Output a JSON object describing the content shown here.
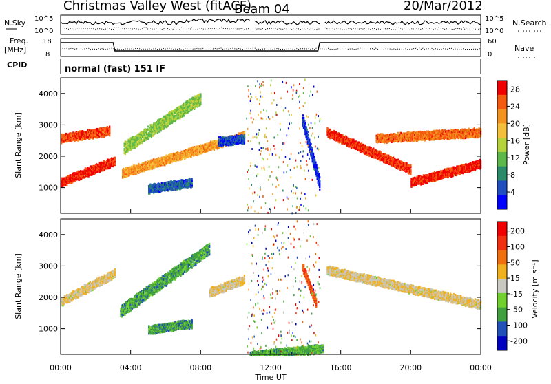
{
  "header": {
    "station": "Christmas Valley West (fitACF)",
    "beam": "Beam 04",
    "date": "20/Mar/2012"
  },
  "top_panels": {
    "nsky_label": "N.Sky",
    "nsky_top": "10^5",
    "nsky_bottom": "10^0",
    "nsky_right_top": "10^5",
    "nsky_right_bottom": "10^0",
    "nsearch_label": "N.Search",
    "freq_label": "Freq.",
    "freq_unit": "[MHz]",
    "freq_top": "18",
    "freq_bottom": "8",
    "nave_top": "60",
    "nave_bottom": "0",
    "nave_label": "Nave",
    "cpid_label": "CPID",
    "cpid_text": "normal (fast) 151 IF"
  },
  "x_axis": {
    "label": "Time UT",
    "ticks": [
      "00:00",
      "04:00",
      "08:00",
      "12:00",
      "16:00",
      "20:00",
      "00:00"
    ]
  },
  "chart_data": [
    {
      "type": "heatmap",
      "title": "",
      "xlabel": "Time UT",
      "ylabel": "Slant Range [km]",
      "xlim": [
        0,
        24
      ],
      "ylim": [
        180,
        4500
      ],
      "yticks": [
        "1000",
        "2000",
        "3000",
        "4000"
      ],
      "colorbar": {
        "label": "Power [dB]",
        "ticks": [
          "4",
          "8",
          "12",
          "16",
          "20",
          "24",
          "28"
        ],
        "range": [
          0,
          30
        ],
        "colors": [
          "#0000ff",
          "#1f4fbf",
          "#2a8a6a",
          "#5cb84a",
          "#b6d23a",
          "#f4c03c",
          "#f49420",
          "#f45a10",
          "#f00000"
        ]
      },
      "bands": [
        {
          "t0": 0.0,
          "t1": 3.1,
          "r_start": 1200,
          "r_end": 1900,
          "level": 0.92
        },
        {
          "t0": 0.0,
          "t1": 2.8,
          "r_start": 2600,
          "r_end": 2850,
          "level": 0.85
        },
        {
          "t0": 3.5,
          "t1": 10.5,
          "r_start": 1500,
          "r_end": 2700,
          "level": 0.7
        },
        {
          "t0": 3.6,
          "t1": 8.0,
          "r_start": 2300,
          "r_end": 3900,
          "level": 0.45
        },
        {
          "t0": 9.0,
          "t1": 10.5,
          "r_start": 2500,
          "r_end": 2600,
          "level": 0.15
        },
        {
          "t0": 5.0,
          "t1": 7.5,
          "r_start": 1000,
          "r_end": 1200,
          "level": 0.2
        },
        {
          "t0": 13.8,
          "t1": 14.8,
          "r_start": 3200,
          "r_end": 1100,
          "level": 0.12
        },
        {
          "t0": 15.2,
          "t1": 20.0,
          "r_start": 2800,
          "r_end": 1600,
          "level": 0.9
        },
        {
          "t0": 20.0,
          "t1": 24.0,
          "r_start": 1200,
          "r_end": 1800,
          "level": 0.92
        },
        {
          "t0": 18.0,
          "t1": 24.0,
          "r_start": 2600,
          "r_end": 2800,
          "level": 0.8
        }
      ]
    },
    {
      "type": "heatmap",
      "title": "",
      "xlabel": "Time UT",
      "ylabel": "Slant Range [km]",
      "xlim": [
        0,
        24
      ],
      "ylim": [
        180,
        4500
      ],
      "yticks": [
        "1000",
        "2000",
        "3000",
        "4000"
      ],
      "colorbar": {
        "label": "Velocity [m s⁻¹]",
        "ticks": [
          "200",
          "100",
          "50",
          "15",
          "-15",
          "-50",
          "-100",
          "-200"
        ],
        "range": [
          -250,
          250
        ],
        "colors": [
          "#0000c0",
          "#2050b8",
          "#40a040",
          "#70d030",
          "#c8c8c0",
          "#f0b020",
          "#f07010",
          "#f03010",
          "#f00000"
        ]
      },
      "bands": [
        {
          "t0": 0.0,
          "t1": 3.1,
          "r_start": 1900,
          "r_end": 2800,
          "level": 0.55
        },
        {
          "t0": 3.4,
          "t1": 8.5,
          "r_start": 1600,
          "r_end": 3600,
          "level": 0.3
        },
        {
          "t0": 8.5,
          "t1": 10.5,
          "r_start": 2200,
          "r_end": 2600,
          "level": 0.55
        },
        {
          "t0": 5.0,
          "t1": 7.5,
          "r_start": 1000,
          "r_end": 1200,
          "level": 0.28
        },
        {
          "t0": 13.8,
          "t1": 14.6,
          "r_start": 3000,
          "r_end": 1800,
          "level": 0.78
        },
        {
          "t0": 15.2,
          "t1": 24.0,
          "r_start": 2900,
          "r_end": 1800,
          "level": 0.55
        },
        {
          "t0": 10.8,
          "t1": 15.0,
          "r_start": 180,
          "r_end": 400,
          "level": 0.32
        }
      ]
    }
  ]
}
